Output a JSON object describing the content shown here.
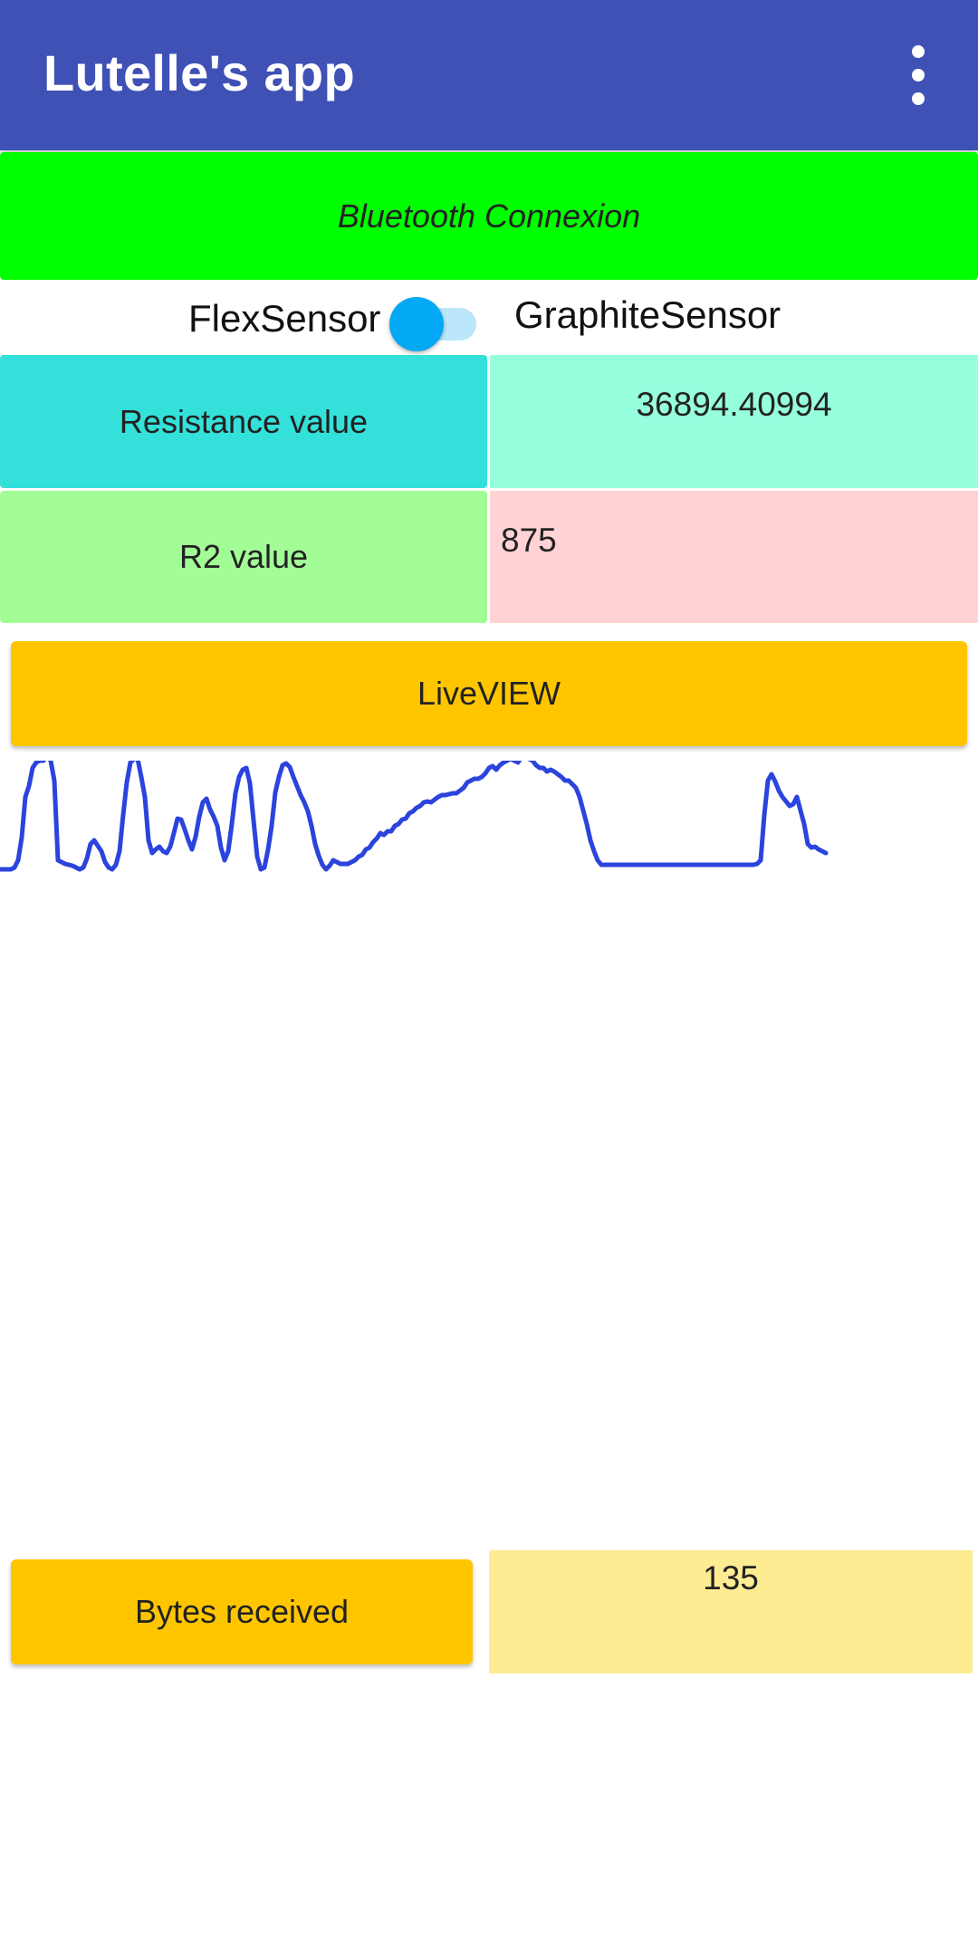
{
  "appbar": {
    "title": "Lutelle's app",
    "menu_icon": "more-vert-icon",
    "background": "#3F51B5"
  },
  "bluetooth": {
    "label": "Bluetooth Connexion",
    "color": "#00FF00"
  },
  "sensor_switch": {
    "left_label": "FlexSensor",
    "right_label": "GraphiteSensor",
    "checked": false,
    "thumb_color": "#03A9F4",
    "track_color": "#BBE6FB"
  },
  "resistance": {
    "label": "Resistance value",
    "value": "36894.40994"
  },
  "r2": {
    "label": "R2 value",
    "value": "875"
  },
  "live_view": {
    "label": "LiveVIEW",
    "color": "#FFC600"
  },
  "graph": {
    "line_color": "#2B44DD",
    "samples": [
      960,
      960,
      960,
      960,
      958,
      950,
      925,
      880,
      868,
      848,
      842,
      840,
      840,
      835,
      840,
      862,
      950,
      952,
      954,
      955,
      956,
      958,
      960,
      958,
      948,
      932,
      928,
      934,
      940,
      952,
      958,
      960,
      955,
      940,
      900,
      864,
      842,
      838,
      838,
      858,
      880,
      928,
      942,
      938,
      935,
      940,
      942,
      935,
      920,
      904,
      905,
      916,
      928,
      938,
      924,
      902,
      886,
      882,
      894,
      902,
      912,
      936,
      950,
      940,
      910,
      876,
      858,
      850,
      848,
      865,
      906,
      946,
      960,
      958,
      938,
      912,
      875,
      858,
      845,
      843,
      847,
      858,
      868,
      878,
      886,
      896,
      912,
      932,
      945,
      955,
      960,
      956,
      950,
      952,
      954,
      954,
      954,
      952,
      950,
      946,
      944,
      938,
      936,
      930,
      926,
      920,
      922,
      918,
      918,
      912,
      910,
      905,
      904,
      898,
      896,
      892,
      890,
      886,
      885,
      886,
      883,
      880,
      878,
      878,
      877,
      876,
      876,
      873,
      870,
      864,
      862,
      860,
      860,
      858,
      854,
      848,
      846,
      850,
      845,
      842,
      840,
      838,
      840,
      842,
      836,
      835,
      838,
      840,
      845,
      848,
      848,
      852,
      850,
      852,
      855,
      858,
      862,
      862,
      866,
      870,
      880,
      895,
      910,
      928,
      940,
      950,
      955,
      955,
      955,
      955,
      955,
      955,
      955,
      955,
      955,
      955,
      955,
      955,
      955,
      955,
      955,
      955,
      955,
      955,
      955,
      955,
      955,
      955,
      955,
      955,
      955,
      955,
      955,
      955,
      955,
      955,
      955,
      955,
      955,
      955,
      955,
      955,
      955,
      955,
      955,
      955,
      955,
      955,
      955,
      954,
      950,
      900,
      862,
      855,
      863,
      873,
      880,
      885,
      890,
      888,
      880,
      895,
      910,
      932,
      936,
      935,
      938,
      940,
      942
    ]
  },
  "bytes": {
    "label": "Bytes received",
    "value": "135"
  }
}
